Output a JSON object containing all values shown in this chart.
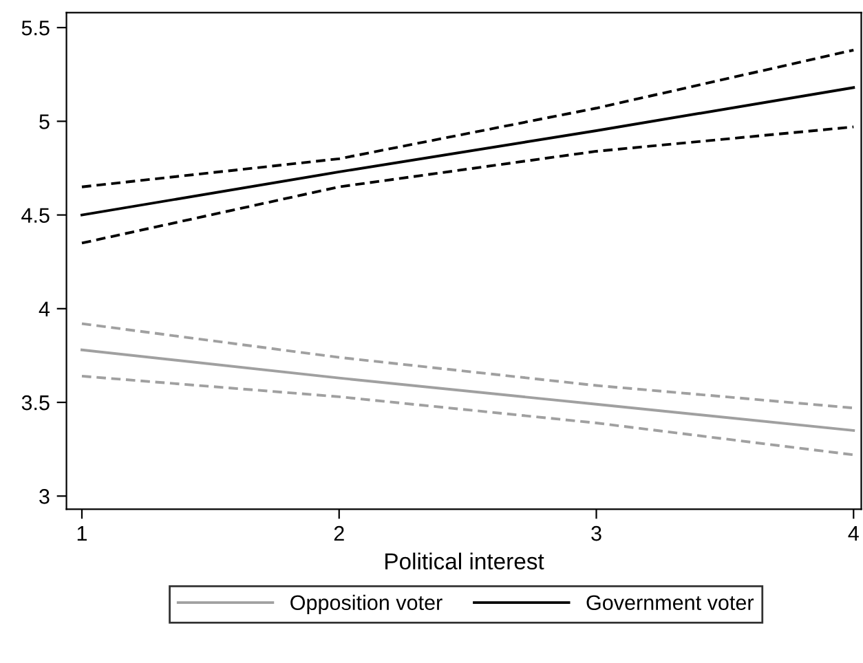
{
  "chart_data": {
    "type": "line",
    "xlabel": "Political interest",
    "x": [
      1,
      2,
      3,
      4
    ],
    "series": [
      {
        "name": "Opposition voter",
        "color": "#a0a0a0",
        "values": [
          3.78,
          3.63,
          3.49,
          3.35
        ]
      },
      {
        "name": "Government voter",
        "color": "#000000",
        "values": [
          4.5,
          4.73,
          4.95,
          5.18
        ]
      },
      {
        "color": "#a0a0a0",
        "line_style": "dashed",
        "values": [
          3.64,
          3.53,
          3.39,
          3.22
        ]
      },
      {
        "color": "#a0a0a0",
        "line_style": "dashed",
        "values": [
          3.92,
          3.74,
          3.59,
          3.47
        ]
      },
      {
        "color": "#000000",
        "line_style": "dashed",
        "values": [
          4.35,
          4.65,
          4.84,
          4.97
        ]
      },
      {
        "color": "#000000",
        "line_style": "dashed",
        "values": [
          4.65,
          4.8,
          5.07,
          5.38
        ]
      }
    ],
    "xlim": [
      0.94,
      4.03
    ],
    "xticks": [
      1,
      2,
      3,
      4
    ],
    "ylim": [
      2.93,
      5.58
    ],
    "yticks": [
      3,
      3.5,
      4,
      4.5,
      5,
      5.5
    ],
    "grid": false,
    "legend": "bottom",
    "line_style": "solid"
  }
}
